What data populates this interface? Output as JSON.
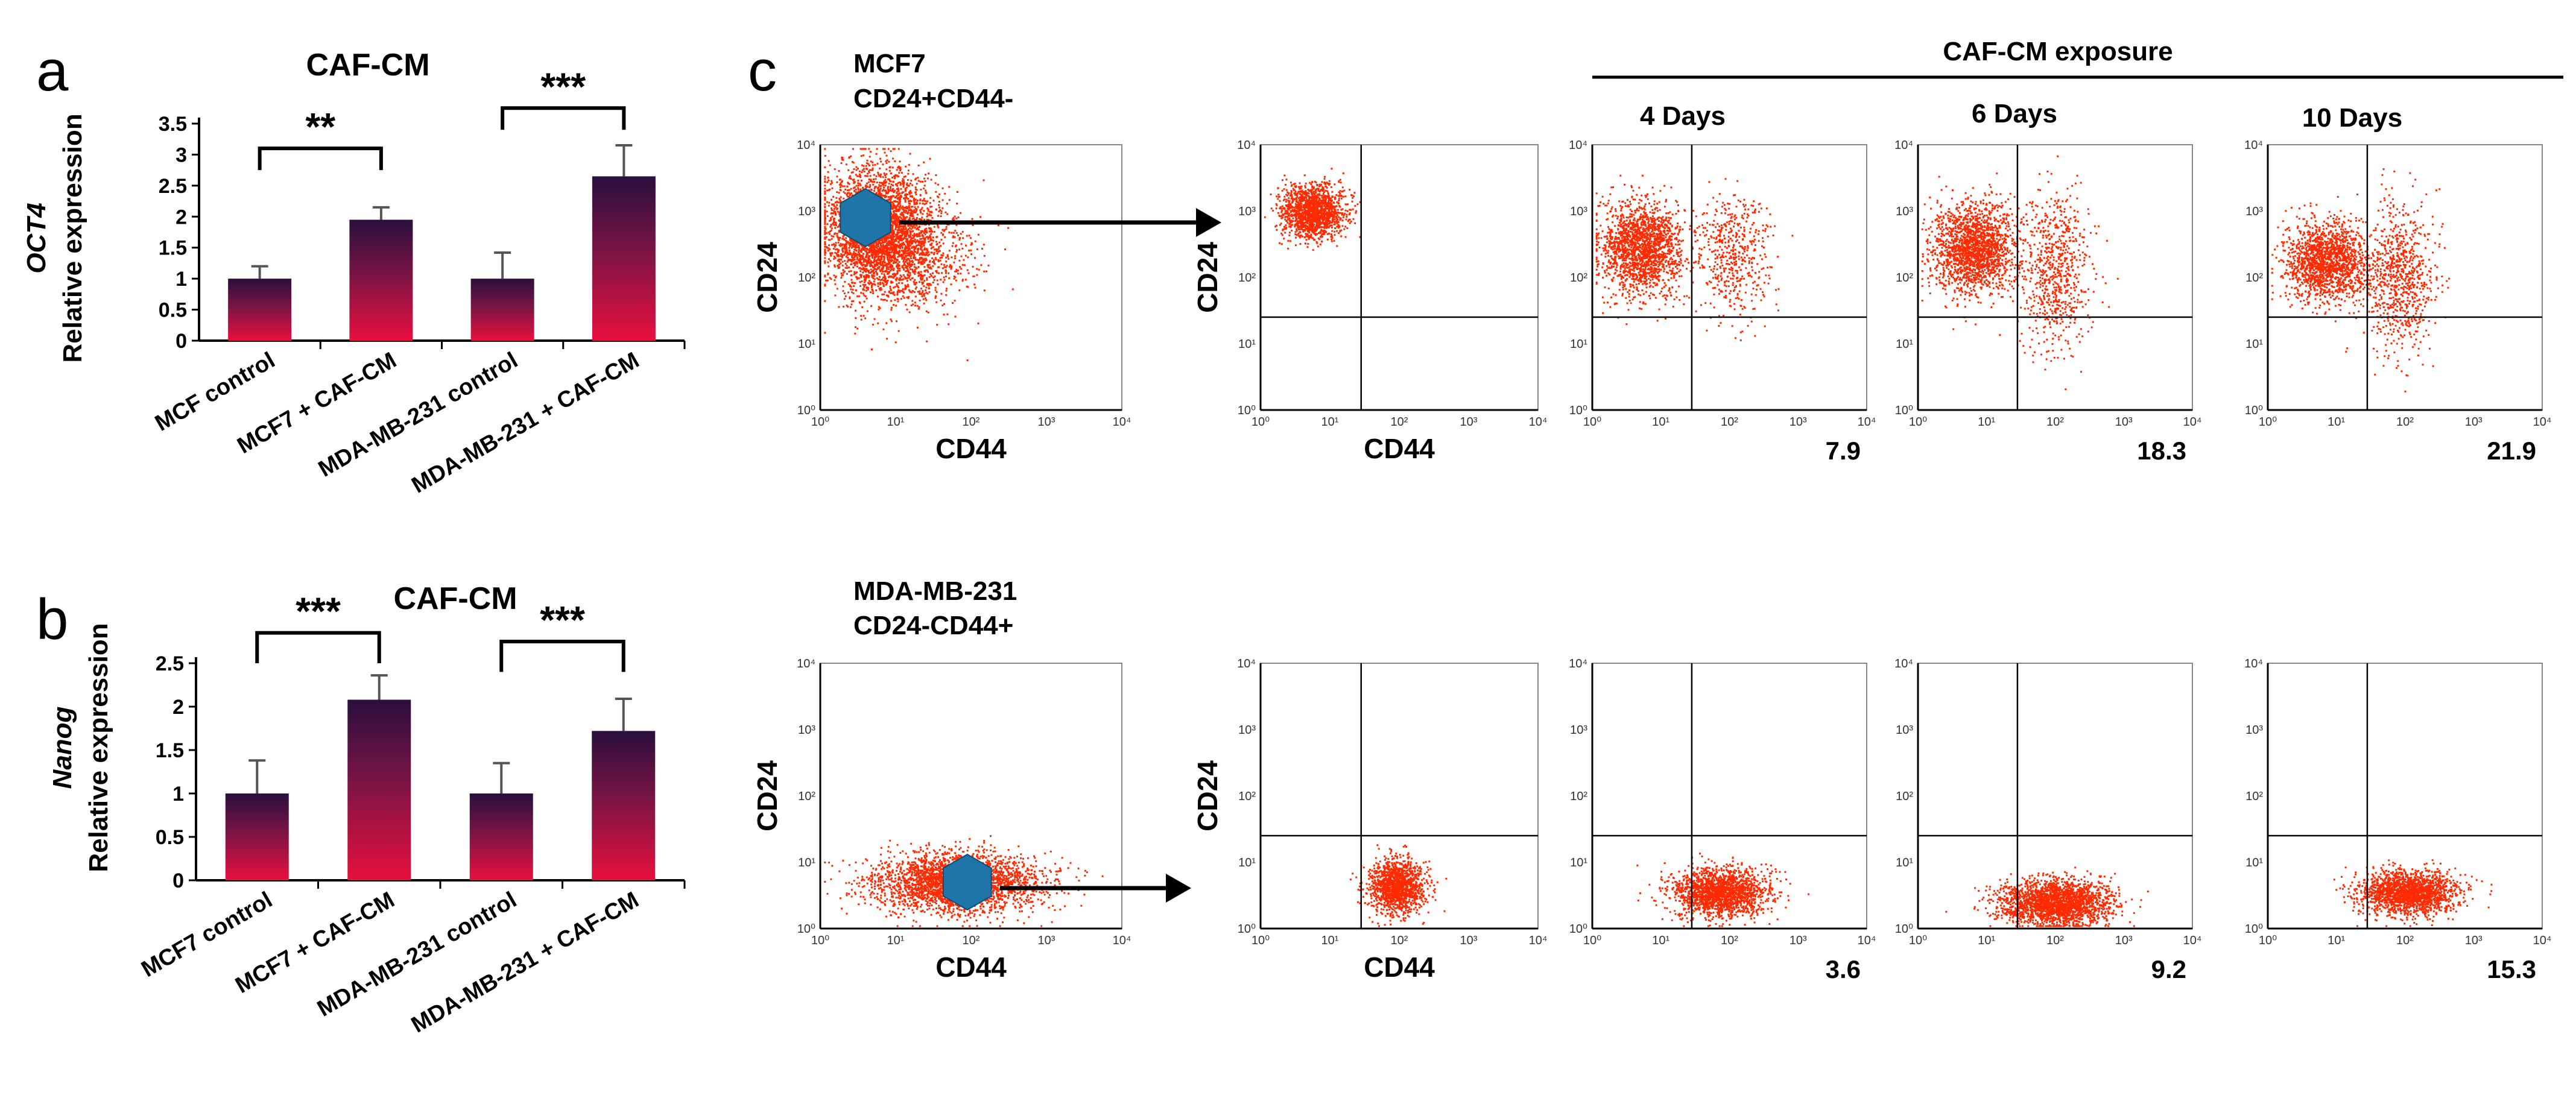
{
  "panel_labels": {
    "a": "a",
    "b": "b",
    "c": "c"
  },
  "colors": {
    "bar_top": "#2a0f3d",
    "bar_mid": "#7a1445",
    "bar_bottom": "#e8103e",
    "dot": "#ff2a00",
    "gate": "#1f74a8",
    "axis": "#000000"
  },
  "chart_data": [
    {
      "id": "a",
      "type": "bar",
      "title": "CAF-CM",
      "ylabel_gene": "OCT4",
      "ylabel": "Relative expression",
      "categories": [
        "MCF control",
        "MCF7 + CAF-CM",
        "MDA-MB-231 control",
        "MDA-MB-231 + CAF-CM"
      ],
      "values": [
        1.0,
        1.95,
        1.0,
        2.65
      ],
      "errors": [
        0.2,
        0.2,
        0.42,
        0.5
      ],
      "ylim": [
        0,
        3.5
      ],
      "yticks": [
        "0",
        "0.5",
        "1",
        "1.5",
        "2",
        "2.5",
        "3",
        "3.5"
      ],
      "significance": [
        {
          "pair": [
            0,
            1
          ],
          "label": "**"
        },
        {
          "pair": [
            2,
            3
          ],
          "label": "***"
        }
      ]
    },
    {
      "id": "b",
      "type": "bar",
      "title": "CAF-CM",
      "ylabel_gene": "Nanog",
      "ylabel": "Relative expression",
      "categories": [
        "MCF7 control",
        "MCF7 + CAF-CM",
        "MDA-MB-231 control",
        "MDA-MB-231 + CAF-CM"
      ],
      "values": [
        1.0,
        2.08,
        1.0,
        1.72
      ],
      "errors": [
        0.38,
        0.28,
        0.35,
        0.37
      ],
      "ylim": [
        0,
        2.5
      ],
      "yticks": [
        "0",
        "0.5",
        "1",
        "1.5",
        "2",
        "2.5"
      ],
      "significance": [
        {
          "pair": [
            0,
            1
          ],
          "label": "***"
        },
        {
          "pair": [
            2,
            3
          ],
          "label": "***"
        }
      ]
    },
    {
      "id": "c",
      "type": "scatter",
      "header": "CAF-CM exposure",
      "columns": [
        "4 Days",
        "6 Days",
        "10 Days"
      ],
      "xlabel": "CD44",
      "ylabel": "CD24",
      "tick_labels": [
        "10⁰",
        "10¹",
        "10²",
        "10³",
        "10⁴"
      ],
      "rows": [
        {
          "cell_line": "MCF7",
          "phenotype": "CD24+CD44-",
          "values": [
            "7.9",
            "18.3",
            "21.9"
          ]
        },
        {
          "cell_line": "MDA-MB-231",
          "phenotype": "CD24-CD44+",
          "values": [
            "3.6",
            "9.2",
            "15.3"
          ]
        }
      ]
    }
  ]
}
